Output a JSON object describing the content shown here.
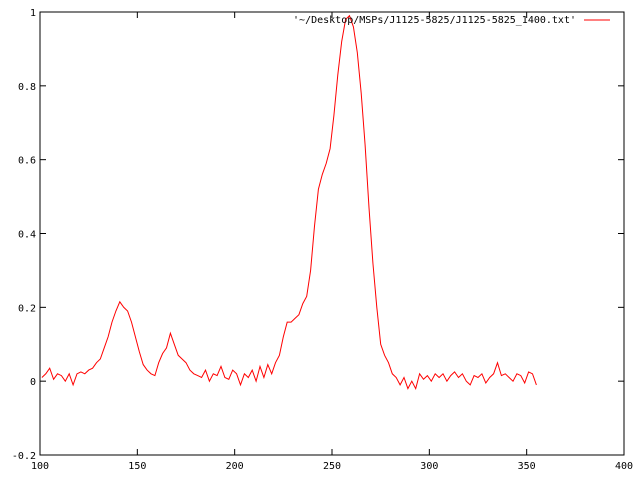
{
  "chart_data": {
    "type": "line",
    "title": "",
    "xlabel": "",
    "ylabel": "",
    "xlim": [
      100,
      400
    ],
    "ylim": [
      -0.2,
      1
    ],
    "grid": false,
    "legend_placement": "top-right",
    "x_ticks": [
      "100",
      "150",
      "200",
      "250",
      "300",
      "350",
      "400"
    ],
    "y_ticks": [
      "-0.2",
      "0",
      "0.2",
      "0.4",
      "0.6",
      "0.8",
      "1"
    ],
    "series": [
      {
        "name": "'~/Desktop/MSPs/J1125-5825/J1125-5825_1400.txt'",
        "color": "#ff0000",
        "points": [
          [
            101,
            0.01
          ],
          [
            103,
            0.02
          ],
          [
            105,
            0.035
          ],
          [
            107,
            0.005
          ],
          [
            109,
            0.02
          ],
          [
            111,
            0.015
          ],
          [
            113,
            0.0
          ],
          [
            115,
            0.02
          ],
          [
            117,
            -0.01
          ],
          [
            119,
            0.02
          ],
          [
            121,
            0.025
          ],
          [
            123,
            0.02
          ],
          [
            125,
            0.03
          ],
          [
            127,
            0.035
          ],
          [
            129,
            0.05
          ],
          [
            131,
            0.06
          ],
          [
            133,
            0.09
          ],
          [
            135,
            0.12
          ],
          [
            137,
            0.16
          ],
          [
            139,
            0.19
          ],
          [
            141,
            0.215
          ],
          [
            143,
            0.2
          ],
          [
            145,
            0.19
          ],
          [
            147,
            0.16
          ],
          [
            149,
            0.12
          ],
          [
            151,
            0.08
          ],
          [
            153,
            0.045
          ],
          [
            155,
            0.03
          ],
          [
            157,
            0.02
          ],
          [
            159,
            0.015
          ],
          [
            161,
            0.05
          ],
          [
            163,
            0.075
          ],
          [
            165,
            0.09
          ],
          [
            167,
            0.13
          ],
          [
            169,
            0.1
          ],
          [
            171,
            0.07
          ],
          [
            173,
            0.06
          ],
          [
            175,
            0.05
          ],
          [
            177,
            0.03
          ],
          [
            179,
            0.02
          ],
          [
            181,
            0.015
          ],
          [
            183,
            0.01
          ],
          [
            185,
            0.03
          ],
          [
            187,
            0.0
          ],
          [
            189,
            0.02
          ],
          [
            191,
            0.015
          ],
          [
            193,
            0.04
          ],
          [
            195,
            0.01
          ],
          [
            197,
            0.005
          ],
          [
            199,
            0.03
          ],
          [
            201,
            0.02
          ],
          [
            203,
            -0.01
          ],
          [
            205,
            0.02
          ],
          [
            207,
            0.01
          ],
          [
            209,
            0.03
          ],
          [
            211,
            0.0
          ],
          [
            213,
            0.04
          ],
          [
            215,
            0.01
          ],
          [
            217,
            0.045
          ],
          [
            219,
            0.02
          ],
          [
            221,
            0.05
          ],
          [
            223,
            0.07
          ],
          [
            225,
            0.12
          ],
          [
            227,
            0.16
          ],
          [
            229,
            0.16
          ],
          [
            231,
            0.17
          ],
          [
            233,
            0.18
          ],
          [
            235,
            0.21
          ],
          [
            237,
            0.23
          ],
          [
            239,
            0.3
          ],
          [
            241,
            0.42
          ],
          [
            243,
            0.52
          ],
          [
            245,
            0.56
          ],
          [
            247,
            0.59
          ],
          [
            249,
            0.63
          ],
          [
            251,
            0.72
          ],
          [
            253,
            0.83
          ],
          [
            255,
            0.92
          ],
          [
            257,
            0.98
          ],
          [
            259,
            0.99
          ],
          [
            261,
            0.96
          ],
          [
            263,
            0.89
          ],
          [
            265,
            0.78
          ],
          [
            267,
            0.64
          ],
          [
            269,
            0.47
          ],
          [
            271,
            0.32
          ],
          [
            273,
            0.2
          ],
          [
            275,
            0.1
          ],
          [
            277,
            0.07
          ],
          [
            279,
            0.05
          ],
          [
            281,
            0.02
          ],
          [
            283,
            0.01
          ],
          [
            285,
            -0.01
          ],
          [
            287,
            0.01
          ],
          [
            289,
            -0.02
          ],
          [
            291,
            0.0
          ],
          [
            293,
            -0.02
          ],
          [
            295,
            0.02
          ],
          [
            297,
            0.005
          ],
          [
            299,
            0.015
          ],
          [
            301,
            0.0
          ],
          [
            303,
            0.02
          ],
          [
            305,
            0.01
          ],
          [
            307,
            0.02
          ],
          [
            309,
            0.0
          ],
          [
            311,
            0.015
          ],
          [
            313,
            0.025
          ],
          [
            315,
            0.01
          ],
          [
            317,
            0.02
          ],
          [
            319,
            0.0
          ],
          [
            321,
            -0.01
          ],
          [
            323,
            0.015
          ],
          [
            325,
            0.01
          ],
          [
            327,
            0.02
          ],
          [
            329,
            -0.005
          ],
          [
            331,
            0.01
          ],
          [
            333,
            0.02
          ],
          [
            335,
            0.05
          ],
          [
            337,
            0.015
          ],
          [
            339,
            0.02
          ],
          [
            341,
            0.01
          ],
          [
            343,
            0.0
          ],
          [
            345,
            0.02
          ],
          [
            347,
            0.015
          ],
          [
            349,
            -0.005
          ],
          [
            351,
            0.025
          ],
          [
            353,
            0.02
          ],
          [
            355,
            -0.01
          ]
        ]
      }
    ]
  }
}
